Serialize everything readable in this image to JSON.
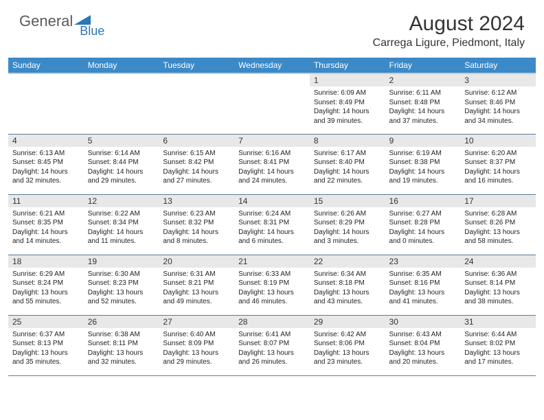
{
  "logo": {
    "general": "General",
    "blue": "Blue"
  },
  "title": "August 2024",
  "location": "Carrega Ligure, Piedmont, Italy",
  "colors": {
    "header_bg": "#3b89c7",
    "header_text": "#ffffff",
    "daynum_bg": "#e8e8e8",
    "border": "#5a7a9a",
    "logo_gray": "#5a5a5a",
    "logo_blue": "#2b77b8"
  },
  "weekdays": [
    "Sunday",
    "Monday",
    "Tuesday",
    "Wednesday",
    "Thursday",
    "Friday",
    "Saturday"
  ],
  "weeks": [
    [
      {
        "n": "",
        "sr": "",
        "ss": "",
        "dl": ""
      },
      {
        "n": "",
        "sr": "",
        "ss": "",
        "dl": ""
      },
      {
        "n": "",
        "sr": "",
        "ss": "",
        "dl": ""
      },
      {
        "n": "",
        "sr": "",
        "ss": "",
        "dl": ""
      },
      {
        "n": "1",
        "sr": "Sunrise: 6:09 AM",
        "ss": "Sunset: 8:49 PM",
        "dl": "Daylight: 14 hours and 39 minutes."
      },
      {
        "n": "2",
        "sr": "Sunrise: 6:11 AM",
        "ss": "Sunset: 8:48 PM",
        "dl": "Daylight: 14 hours and 37 minutes."
      },
      {
        "n": "3",
        "sr": "Sunrise: 6:12 AM",
        "ss": "Sunset: 8:46 PM",
        "dl": "Daylight: 14 hours and 34 minutes."
      }
    ],
    [
      {
        "n": "4",
        "sr": "Sunrise: 6:13 AM",
        "ss": "Sunset: 8:45 PM",
        "dl": "Daylight: 14 hours and 32 minutes."
      },
      {
        "n": "5",
        "sr": "Sunrise: 6:14 AM",
        "ss": "Sunset: 8:44 PM",
        "dl": "Daylight: 14 hours and 29 minutes."
      },
      {
        "n": "6",
        "sr": "Sunrise: 6:15 AM",
        "ss": "Sunset: 8:42 PM",
        "dl": "Daylight: 14 hours and 27 minutes."
      },
      {
        "n": "7",
        "sr": "Sunrise: 6:16 AM",
        "ss": "Sunset: 8:41 PM",
        "dl": "Daylight: 14 hours and 24 minutes."
      },
      {
        "n": "8",
        "sr": "Sunrise: 6:17 AM",
        "ss": "Sunset: 8:40 PM",
        "dl": "Daylight: 14 hours and 22 minutes."
      },
      {
        "n": "9",
        "sr": "Sunrise: 6:19 AM",
        "ss": "Sunset: 8:38 PM",
        "dl": "Daylight: 14 hours and 19 minutes."
      },
      {
        "n": "10",
        "sr": "Sunrise: 6:20 AM",
        "ss": "Sunset: 8:37 PM",
        "dl": "Daylight: 14 hours and 16 minutes."
      }
    ],
    [
      {
        "n": "11",
        "sr": "Sunrise: 6:21 AM",
        "ss": "Sunset: 8:35 PM",
        "dl": "Daylight: 14 hours and 14 minutes."
      },
      {
        "n": "12",
        "sr": "Sunrise: 6:22 AM",
        "ss": "Sunset: 8:34 PM",
        "dl": "Daylight: 14 hours and 11 minutes."
      },
      {
        "n": "13",
        "sr": "Sunrise: 6:23 AM",
        "ss": "Sunset: 8:32 PM",
        "dl": "Daylight: 14 hours and 8 minutes."
      },
      {
        "n": "14",
        "sr": "Sunrise: 6:24 AM",
        "ss": "Sunset: 8:31 PM",
        "dl": "Daylight: 14 hours and 6 minutes."
      },
      {
        "n": "15",
        "sr": "Sunrise: 6:26 AM",
        "ss": "Sunset: 8:29 PM",
        "dl": "Daylight: 14 hours and 3 minutes."
      },
      {
        "n": "16",
        "sr": "Sunrise: 6:27 AM",
        "ss": "Sunset: 8:28 PM",
        "dl": "Daylight: 14 hours and 0 minutes."
      },
      {
        "n": "17",
        "sr": "Sunrise: 6:28 AM",
        "ss": "Sunset: 8:26 PM",
        "dl": "Daylight: 13 hours and 58 minutes."
      }
    ],
    [
      {
        "n": "18",
        "sr": "Sunrise: 6:29 AM",
        "ss": "Sunset: 8:24 PM",
        "dl": "Daylight: 13 hours and 55 minutes."
      },
      {
        "n": "19",
        "sr": "Sunrise: 6:30 AM",
        "ss": "Sunset: 8:23 PM",
        "dl": "Daylight: 13 hours and 52 minutes."
      },
      {
        "n": "20",
        "sr": "Sunrise: 6:31 AM",
        "ss": "Sunset: 8:21 PM",
        "dl": "Daylight: 13 hours and 49 minutes."
      },
      {
        "n": "21",
        "sr": "Sunrise: 6:33 AM",
        "ss": "Sunset: 8:19 PM",
        "dl": "Daylight: 13 hours and 46 minutes."
      },
      {
        "n": "22",
        "sr": "Sunrise: 6:34 AM",
        "ss": "Sunset: 8:18 PM",
        "dl": "Daylight: 13 hours and 43 minutes."
      },
      {
        "n": "23",
        "sr": "Sunrise: 6:35 AM",
        "ss": "Sunset: 8:16 PM",
        "dl": "Daylight: 13 hours and 41 minutes."
      },
      {
        "n": "24",
        "sr": "Sunrise: 6:36 AM",
        "ss": "Sunset: 8:14 PM",
        "dl": "Daylight: 13 hours and 38 minutes."
      }
    ],
    [
      {
        "n": "25",
        "sr": "Sunrise: 6:37 AM",
        "ss": "Sunset: 8:13 PM",
        "dl": "Daylight: 13 hours and 35 minutes."
      },
      {
        "n": "26",
        "sr": "Sunrise: 6:38 AM",
        "ss": "Sunset: 8:11 PM",
        "dl": "Daylight: 13 hours and 32 minutes."
      },
      {
        "n": "27",
        "sr": "Sunrise: 6:40 AM",
        "ss": "Sunset: 8:09 PM",
        "dl": "Daylight: 13 hours and 29 minutes."
      },
      {
        "n": "28",
        "sr": "Sunrise: 6:41 AM",
        "ss": "Sunset: 8:07 PM",
        "dl": "Daylight: 13 hours and 26 minutes."
      },
      {
        "n": "29",
        "sr": "Sunrise: 6:42 AM",
        "ss": "Sunset: 8:06 PM",
        "dl": "Daylight: 13 hours and 23 minutes."
      },
      {
        "n": "30",
        "sr": "Sunrise: 6:43 AM",
        "ss": "Sunset: 8:04 PM",
        "dl": "Daylight: 13 hours and 20 minutes."
      },
      {
        "n": "31",
        "sr": "Sunrise: 6:44 AM",
        "ss": "Sunset: 8:02 PM",
        "dl": "Daylight: 13 hours and 17 minutes."
      }
    ]
  ]
}
